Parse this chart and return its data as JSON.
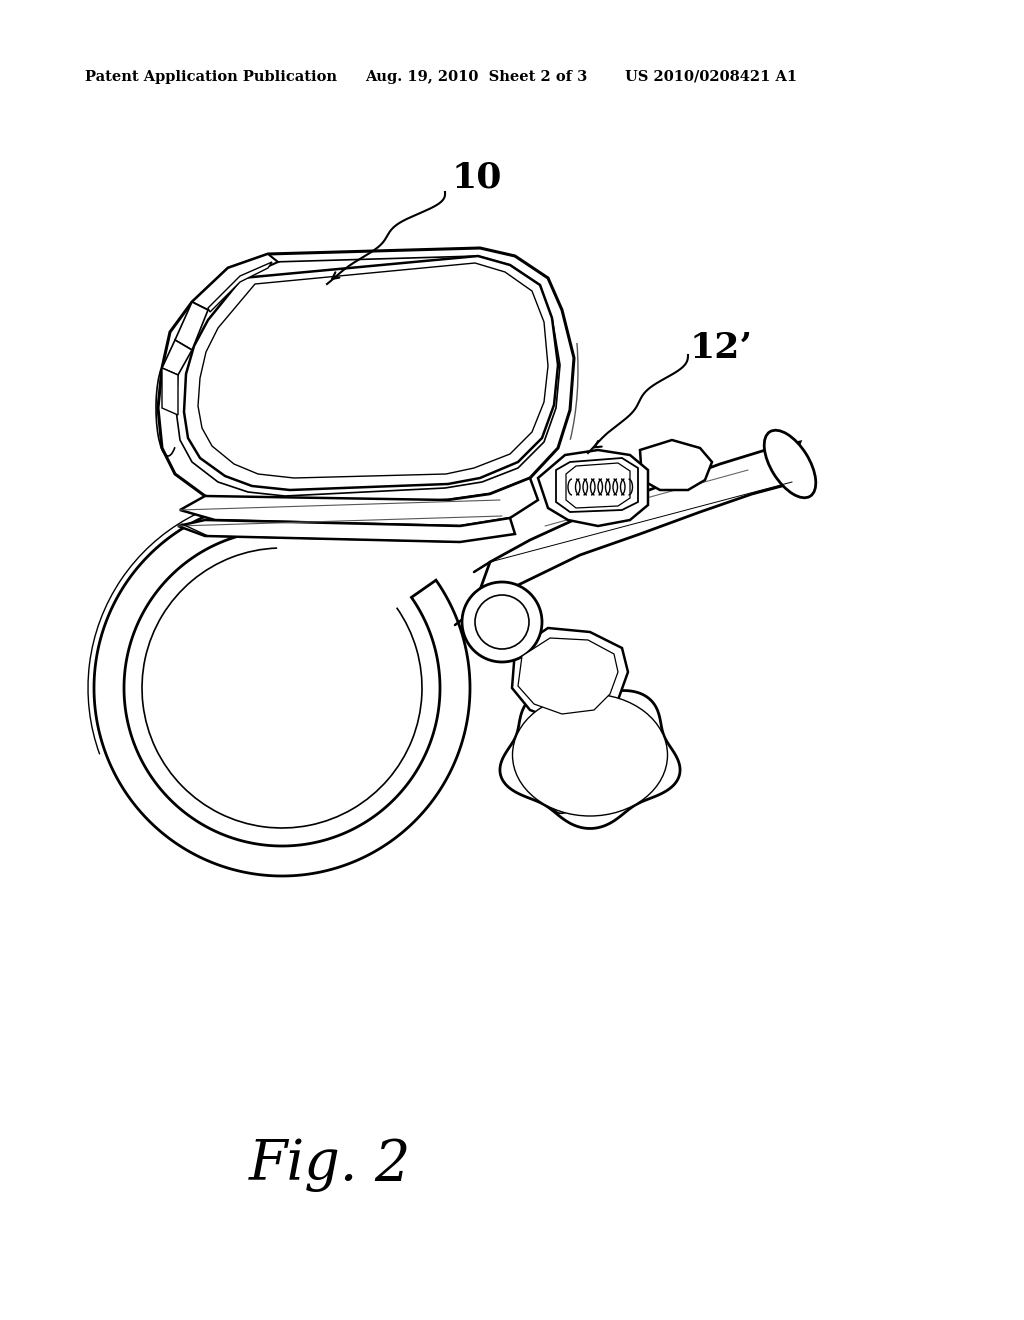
{
  "background_color": "#ffffff",
  "header_left": "Patent Application Publication",
  "header_center": "Aug. 19, 2010  Sheet 2 of 3",
  "header_right": "US 2010/0208421 A1",
  "caption": "Fig. 2",
  "label_10": "10",
  "label_12p": "12’",
  "fig_width": 10.24,
  "fig_height": 13.2,
  "header_fontsize": 10.5,
  "caption_fontsize": 40,
  "label_fontsize": 26
}
